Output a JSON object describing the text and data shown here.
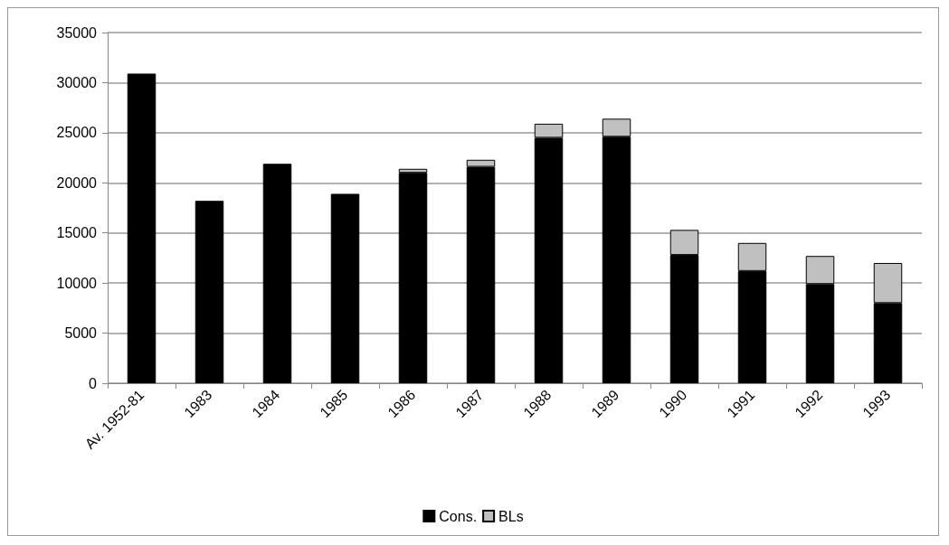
{
  "chart_data": {
    "type": "bar",
    "stacked": true,
    "categories": [
      "Av. 1952-81",
      "1983",
      "1984",
      "1985",
      "1986",
      "1987",
      "1988",
      "1989",
      "1990",
      "1991",
      "1992",
      "1993"
    ],
    "series": [
      {
        "name": "Cons.",
        "color": "#000000",
        "values": [
          30900,
          18200,
          21900,
          18900,
          21000,
          21600,
          24500,
          24600,
          12800,
          11200,
          9900,
          8000
        ]
      },
      {
        "name": "BLs",
        "color": "#c0c0c0",
        "values": [
          null,
          null,
          null,
          null,
          400,
          700,
          1400,
          1800,
          2500,
          2800,
          2800,
          4000
        ]
      }
    ],
    "ylim": [
      0,
      35000
    ],
    "yticks": [
      0,
      5000,
      10000,
      15000,
      20000,
      25000,
      30000,
      35000
    ],
    "grid": "y",
    "legend": "bottom"
  }
}
